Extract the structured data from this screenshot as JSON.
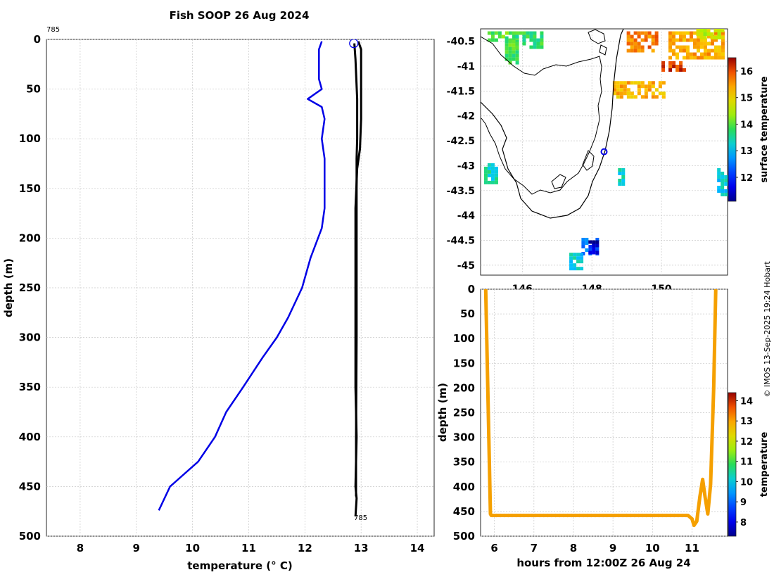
{
  "title": "Fish SOOP 26 Aug 2024",
  "credit": "© IMOS 13-Sep-2025 19:24 Hobart",
  "profile_id": "785",
  "colors": {
    "profile_black": "#000000",
    "profile_blue": "#0000e6",
    "marker_circle": "#0000e6",
    "track": "#f5a000",
    "grid": "#c8c8c8",
    "land": "#000000"
  },
  "chart_data": [
    {
      "name": "temperature-profile",
      "type": "line",
      "xlabel": "temperature (° C)",
      "ylabel": "depth (m)",
      "xlim": [
        7.4,
        14.3
      ],
      "ylim": [
        0,
        500
      ],
      "y_reversed": true,
      "xticks": [
        8,
        9,
        10,
        11,
        12,
        13,
        14
      ],
      "yticks": [
        0,
        50,
        100,
        150,
        200,
        250,
        300,
        350,
        400,
        450,
        500
      ],
      "grid": true,
      "start_label": "785",
      "end_label": "785",
      "surface_marker": {
        "temperature": 12.87,
        "depth": 4
      },
      "series": [
        {
          "name": "climatology",
          "color": "#0000e6",
          "points": [
            [
              12.3,
              2
            ],
            [
              12.25,
              10
            ],
            [
              12.25,
              40
            ],
            [
              12.3,
              50
            ],
            [
              12.05,
              60
            ],
            [
              12.3,
              68
            ],
            [
              12.35,
              80
            ],
            [
              12.3,
              100
            ],
            [
              12.35,
              120
            ],
            [
              12.35,
              150
            ],
            [
              12.35,
              170
            ],
            [
              12.3,
              190
            ],
            [
              12.1,
              220
            ],
            [
              11.95,
              250
            ],
            [
              11.7,
              280
            ],
            [
              11.5,
              300
            ],
            [
              11.25,
              320
            ],
            [
              10.9,
              350
            ],
            [
              10.6,
              375
            ],
            [
              10.4,
              400
            ],
            [
              10.1,
              425
            ],
            [
              9.6,
              450
            ],
            [
              9.4,
              474
            ]
          ]
        },
        {
          "name": "measured-profile",
          "color": "#000000",
          "points": [
            [
              12.95,
              2
            ],
            [
              13.0,
              10
            ],
            [
              13.0,
              50
            ],
            [
              13.0,
              80
            ],
            [
              12.98,
              110
            ],
            [
              12.93,
              130
            ],
            [
              12.9,
              170
            ],
            [
              12.9,
              250
            ],
            [
              12.9,
              350
            ],
            [
              12.92,
              400
            ],
            [
              12.9,
              450
            ],
            [
              12.92,
              462
            ],
            [
              12.9,
              480
            ]
          ]
        },
        {
          "name": "measured-profile-2",
          "color": "#000000",
          "points": [
            [
              12.88,
              4
            ],
            [
              12.9,
              20
            ],
            [
              12.93,
              60
            ],
            [
              12.93,
              100
            ],
            [
              12.92,
              120
            ],
            [
              12.92,
              200
            ],
            [
              12.92,
              300
            ],
            [
              12.91,
              400
            ],
            [
              12.91,
              460
            ]
          ]
        }
      ]
    },
    {
      "name": "sst-map",
      "type": "heatmap",
      "xlim": [
        144.8,
        151.9
      ],
      "ylim": [
        -45.2,
        -40.25
      ],
      "xticks": [
        146,
        148,
        150
      ],
      "yticks": [
        -40.5,
        -41,
        -41.5,
        -42,
        -42.5,
        -43,
        -43.5,
        -44,
        -44.5,
        -45
      ],
      "ytick_labels": [
        "-40.5",
        "-41",
        "-41.5",
        "-42",
        "-42.5",
        "-43",
        "-43.5",
        "-44",
        "-44.5",
        "-45"
      ],
      "xtick_labels": [
        "146",
        "148",
        "150"
      ],
      "grid": true,
      "colorbar": {
        "label": "surface temperature",
        "min": 11.1,
        "max": 16.5,
        "ticks": [
          12,
          13,
          14,
          15,
          16
        ]
      },
      "station": {
        "lon": 148.35,
        "lat": -42.72
      },
      "patches": [
        {
          "lon": [
            145.0,
            145.8
          ],
          "lat": [
            -40.3,
            -40.5
          ],
          "value": 14.0
        },
        {
          "lon": [
            145.5,
            145.85
          ],
          "lat": [
            -40.4,
            -40.9
          ],
          "value": 13.9
        },
        {
          "lon": [
            145.8,
            146.6
          ],
          "lat": [
            -40.3,
            -40.6
          ],
          "value": 13.8
        },
        {
          "lon": [
            150.2,
            151.8
          ],
          "lat": [
            -40.3,
            -40.8
          ],
          "value": 15.4
        },
        {
          "lon": [
            149.0,
            149.9
          ],
          "lat": [
            -40.3,
            -40.7
          ],
          "value": 15.7
        },
        {
          "lon": [
            148.6,
            150.1
          ],
          "lat": [
            -41.3,
            -41.6
          ],
          "value": 15.3
        },
        {
          "lon": [
            150.0,
            150.7
          ],
          "lat": [
            -40.9,
            -41.1
          ],
          "value": 16.1
        },
        {
          "lon": [
            151.0,
            151.8
          ],
          "lat": [
            -40.25,
            -40.45
          ],
          "value": 14.6
        },
        {
          "lon": [
            147.7,
            148.2
          ],
          "lat": [
            -44.45,
            -44.75
          ],
          "value": 12.4
        },
        {
          "lon": [
            147.9,
            148.2
          ],
          "lat": [
            -44.5,
            -44.75
          ],
          "value": 11.3
        },
        {
          "lon": [
            147.35,
            147.75
          ],
          "lat": [
            -44.75,
            -45.1
          ],
          "value": 13.2
        },
        {
          "lon": [
            148.75,
            148.95
          ],
          "lat": [
            -43.05,
            -43.35
          ],
          "value": 13.3
        },
        {
          "lon": [
            144.9,
            145.25
          ],
          "lat": [
            -42.95,
            -43.35
          ],
          "value": 13.4
        },
        {
          "lon": [
            151.6,
            151.85
          ],
          "lat": [
            -43.05,
            -43.55
          ],
          "value": 13.2
        }
      ]
    },
    {
      "name": "depth-time",
      "type": "scatter",
      "xlabel": "hours from 12:00Z 26 Aug 24",
      "ylabel": "depth (m)",
      "xlim": [
        5.65,
        11.9
      ],
      "ylim": [
        0,
        500
      ],
      "y_reversed": true,
      "xticks": [
        6,
        7,
        8,
        9,
        10,
        11
      ],
      "yticks": [
        0,
        50,
        100,
        150,
        200,
        250,
        300,
        350,
        400,
        450,
        500
      ],
      "grid": true,
      "colorbar": {
        "label": "temperature",
        "min": 7.3,
        "max": 14.4,
        "ticks": [
          8,
          9,
          10,
          11,
          12,
          13,
          14
        ]
      },
      "path": [
        [
          5.78,
          2
        ],
        [
          5.9,
          455
        ],
        [
          5.92,
          458
        ],
        [
          10.9,
          458
        ],
        [
          11.0,
          465
        ],
        [
          11.05,
          478
        ],
        [
          11.12,
          470
        ],
        [
          11.2,
          420
        ],
        [
          11.27,
          385
        ],
        [
          11.33,
          420
        ],
        [
          11.4,
          455
        ],
        [
          11.47,
          395
        ],
        [
          11.55,
          200
        ],
        [
          11.6,
          2
        ]
      ]
    }
  ]
}
